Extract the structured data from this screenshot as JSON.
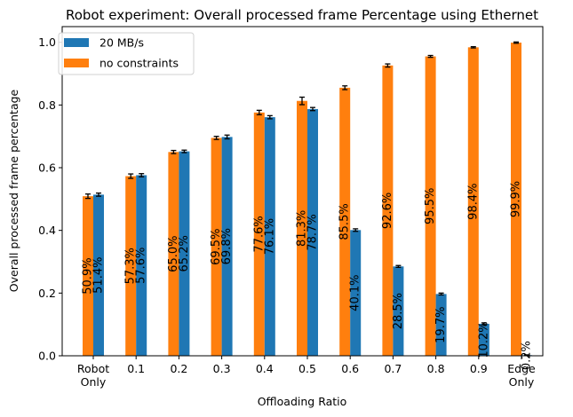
{
  "chart_data": {
    "type": "bar",
    "title": "Robot experiment: Overall processed frame Percentage using Ethernet",
    "xlabel": "Offloading Ratio",
    "ylabel": "Overall processed frame percentage",
    "categories": [
      "Robot\nOnly",
      "0.1",
      "0.2",
      "0.3",
      "0.4",
      "0.5",
      "0.6",
      "0.7",
      "0.8",
      "0.9",
      "Edge\nOnly"
    ],
    "ylim": [
      0,
      1.05
    ],
    "yticks": [
      "0.0",
      "0.2",
      "0.4",
      "0.6",
      "0.8",
      "1.0"
    ],
    "legend_position": "top-left",
    "grid": false,
    "series": [
      {
        "name": "no constraints",
        "color": "#ff7f0e",
        "values": [
          0.509,
          0.573,
          0.65,
          0.695,
          0.776,
          0.813,
          0.855,
          0.926,
          0.955,
          0.984,
          0.999
        ],
        "errors": [
          0.007,
          0.007,
          0.005,
          0.005,
          0.007,
          0.012,
          0.006,
          0.005,
          0.003,
          0.002,
          0.002
        ],
        "labels": [
          "50.9%",
          "57.3%",
          "65.0%",
          "69.5%",
          "77.6%",
          "81.3%",
          "85.5%",
          "92.6%",
          "95.5%",
          "98.4%",
          "99.9%"
        ]
      },
      {
        "name": "20 MB/s",
        "color": "#1f77b4",
        "values": [
          0.514,
          0.576,
          0.652,
          0.698,
          0.761,
          0.787,
          0.401,
          0.285,
          0.197,
          0.102,
          0.002
        ],
        "errors": [
          0.005,
          0.005,
          0.004,
          0.006,
          0.005,
          0.005,
          0.004,
          0.003,
          0.003,
          0.003,
          0.001
        ],
        "labels": [
          "51.4%",
          "57.6%",
          "65.2%",
          "69.8%",
          "76.1%",
          "78.7%",
          "40.1%",
          "28.5%",
          "19.7%",
          "10.2%",
          "0.2%"
        ]
      }
    ]
  }
}
